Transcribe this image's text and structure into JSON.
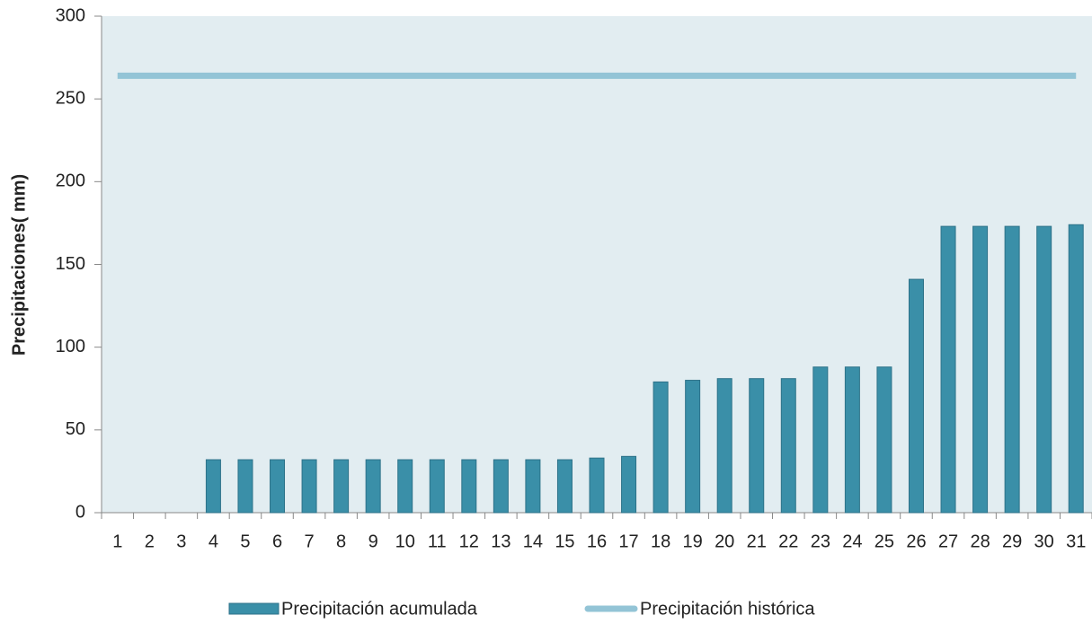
{
  "chart_data": {
    "type": "bar",
    "y_label": "Precipitaciones( mm)",
    "categories": [
      "1",
      "2",
      "3",
      "4",
      "5",
      "6",
      "7",
      "8",
      "9",
      "10",
      "11",
      "12",
      "13",
      "14",
      "15",
      "16",
      "17",
      "18",
      "19",
      "20",
      "21",
      "22",
      "23",
      "24",
      "25",
      "26",
      "27",
      "28",
      "29",
      "30",
      "31"
    ],
    "series": [
      {
        "name": "Precipitación acumulada",
        "type": "bar",
        "color": "#3a8fa8",
        "values": [
          0,
          0,
          0,
          32,
          32,
          32,
          32,
          32,
          32,
          32,
          32,
          32,
          32,
          32,
          32,
          33,
          34,
          79,
          80,
          81,
          81,
          81,
          88,
          88,
          88,
          141,
          173,
          173,
          173,
          173,
          174
        ]
      },
      {
        "name": "Precipitación histórica",
        "type": "line",
        "color": "#93c4d6",
        "values": [
          264,
          264,
          264,
          264,
          264,
          264,
          264,
          264,
          264,
          264,
          264,
          264,
          264,
          264,
          264,
          264,
          264,
          264,
          264,
          264,
          264,
          264,
          264,
          264,
          264,
          264,
          264,
          264,
          264,
          264,
          264
        ]
      }
    ],
    "ylim": [
      0,
      300
    ],
    "yticks": [
      0,
      50,
      100,
      150,
      200,
      250,
      300
    ]
  }
}
